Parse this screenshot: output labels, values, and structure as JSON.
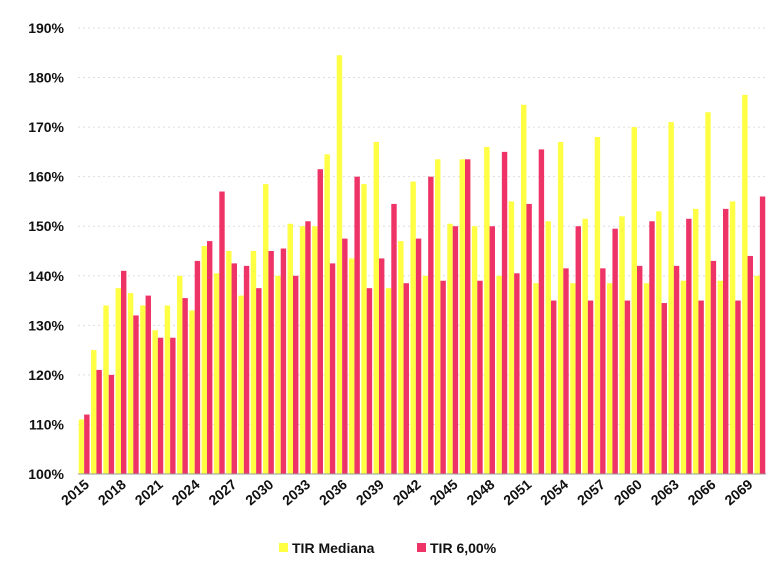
{
  "chart_data": {
    "type": "bar",
    "title": "",
    "xlabel": "",
    "ylabel": "",
    "ylim": [
      100,
      190
    ],
    "yticks": [
      "100%",
      "110%",
      "120%",
      "130%",
      "140%",
      "150%",
      "160%",
      "170%",
      "180%",
      "190%"
    ],
    "categories": [
      2015,
      2016,
      2017,
      2018,
      2019,
      2020,
      2021,
      2022,
      2023,
      2024,
      2025,
      2026,
      2027,
      2028,
      2029,
      2030,
      2031,
      2032,
      2033,
      2034,
      2035,
      2036,
      2037,
      2038,
      2039,
      2040,
      2041,
      2042,
      2043,
      2044,
      2045,
      2046,
      2047,
      2048,
      2049,
      2050,
      2051,
      2052,
      2053,
      2054,
      2055,
      2056,
      2057,
      2058,
      2059,
      2060,
      2061,
      2062,
      2063,
      2064,
      2065,
      2066,
      2067,
      2068,
      2069,
      2070
    ],
    "xticks": [
      "2015",
      "2018",
      "2021",
      "2024",
      "2027",
      "2030",
      "2033",
      "2036",
      "2039",
      "2042",
      "2045",
      "2048",
      "2051",
      "2054",
      "2057",
      "2060",
      "2063",
      "2066",
      "2069"
    ],
    "series": [
      {
        "name": "TIR Mediana",
        "color": "#ffff44",
        "values": [
          111,
          125,
          134,
          137.5,
          136.5,
          134,
          129,
          134,
          140,
          133,
          146,
          140.5,
          145,
          136,
          145,
          158.5,
          140,
          150.5,
          150,
          150,
          164.5,
          184.5,
          143.5,
          158.5,
          167,
          137.5,
          147,
          159,
          140,
          163.5,
          150.5,
          163.5,
          150,
          166,
          140,
          155,
          174.5,
          138.5,
          151,
          167,
          138.5,
          151.5,
          168,
          138.5,
          152,
          170,
          138.5,
          153,
          171,
          139,
          153.5,
          173,
          139,
          155,
          176.5,
          140
        ]
      },
      {
        "name": "TIR 6,00%",
        "color": "#ee3366",
        "values": [
          112,
          121,
          120,
          141,
          132,
          136,
          127.5,
          127.5,
          135.5,
          143,
          147,
          157,
          142.5,
          142,
          137.5,
          145,
          145.5,
          140,
          151,
          161.5,
          142.5,
          147.5,
          160,
          137.5,
          143.5,
          154.5,
          138.5,
          147.5,
          160,
          139,
          150,
          163.5,
          139,
          150,
          165,
          140.5,
          154.5,
          165.5,
          135,
          141.5,
          150,
          135,
          141.5,
          149.5,
          135,
          142,
          151,
          134.5,
          142,
          151.5,
          135,
          143,
          153.5,
          135,
          144,
          156
        ]
      }
    ],
    "legend_position": "bottom"
  }
}
